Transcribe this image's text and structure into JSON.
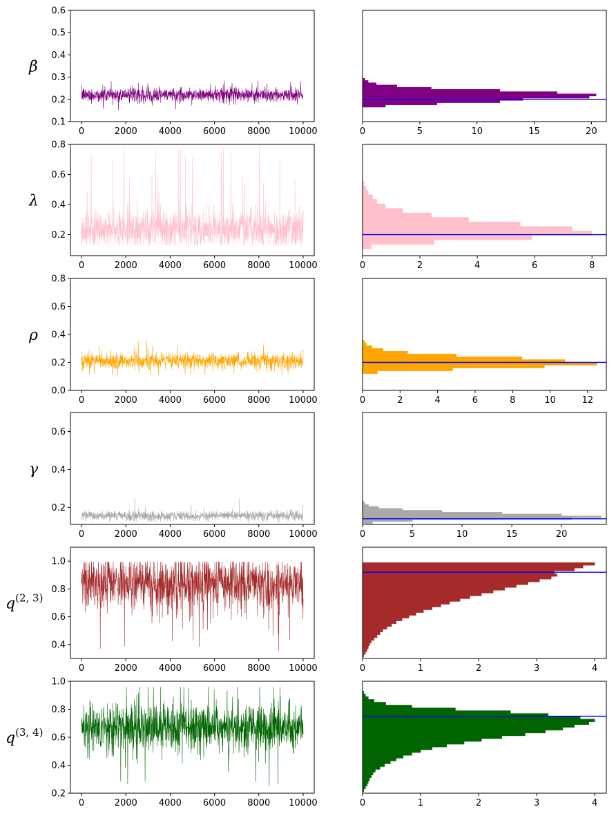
{
  "chart_data": [
    {
      "type": "line",
      "param": "β",
      "sup": "",
      "color": "#800080",
      "trace": {
        "xlim": [
          -500,
          10500
        ],
        "xticks": [
          0,
          2000,
          4000,
          6000,
          8000,
          10000
        ],
        "ylim": [
          0.1,
          0.6
        ],
        "yticks": [
          "0.1",
          "0.2",
          "0.3",
          "0.4",
          "0.5",
          "0.6"
        ],
        "center": 0.22,
        "spread": 0.018,
        "min": 0.15,
        "max": 0.29,
        "spikes": 0.02
      },
      "hist": {
        "type": "bar",
        "xlim": [
          0,
          21.3
        ],
        "xticks": [
          0,
          5,
          10,
          15,
          20
        ],
        "ylim": [
          0.1,
          0.6
        ],
        "bins": [
          0.17,
          0.18,
          0.19,
          0.2,
          0.21,
          0.22,
          0.23,
          0.24,
          0.25,
          0.26,
          0.27,
          0.28,
          0.29
        ],
        "values": [
          2.0,
          6.5,
          12.0,
          14.0,
          19.8,
          20.4,
          17.0,
          12.0,
          6.0,
          3.0,
          1.2,
          0.5,
          0.2
        ],
        "reference": 0.2
      }
    },
    {
      "type": "line",
      "param": "λ",
      "sup": "",
      "color": "#ffc0cb",
      "trace": {
        "xlim": [
          -500,
          10500
        ],
        "xticks": [
          0,
          2000,
          4000,
          6000,
          8000,
          10000
        ],
        "ylim": [
          0.06,
          0.8
        ],
        "yticks": [
          "0.2",
          "0.4",
          "0.6",
          "0.8"
        ],
        "center": 0.24,
        "spread": 0.07,
        "min": 0.13,
        "max": 0.8,
        "spikes": 0.05
      },
      "hist": {
        "type": "bar",
        "xlim": [
          0,
          8.5
        ],
        "xticks": [
          0,
          2,
          4,
          6,
          8
        ],
        "ylim": [
          0.06,
          0.8
        ],
        "bins": [
          0.12,
          0.15,
          0.18,
          0.21,
          0.24,
          0.27,
          0.3,
          0.33,
          0.36,
          0.39,
          0.42,
          0.45,
          0.48,
          0.51,
          0.54
        ],
        "values": [
          0.3,
          2.5,
          5.9,
          8.0,
          7.3,
          5.5,
          3.7,
          2.4,
          1.4,
          0.8,
          0.5,
          0.35,
          0.2,
          0.12,
          0.05
        ],
        "reference": 0.2
      }
    },
    {
      "type": "line",
      "param": "ρ",
      "sup": "",
      "color": "#ffa500",
      "trace": {
        "xlim": [
          -500,
          10500
        ],
        "xticks": [
          0,
          2000,
          4000,
          6000,
          8000,
          10000
        ],
        "ylim": [
          0.0,
          0.8
        ],
        "yticks": [
          "0.0",
          "0.2",
          "0.4",
          "0.6",
          "0.8"
        ],
        "center": 0.21,
        "spread": 0.032,
        "min": 0.11,
        "max": 0.37,
        "spikes": 0.02
      },
      "hist": {
        "type": "bar",
        "xlim": [
          0,
          13.0
        ],
        "xticks": [
          0,
          2,
          4,
          6,
          8,
          10,
          12
        ],
        "ylim": [
          0.0,
          0.8
        ],
        "bins": [
          0.13,
          0.15,
          0.17,
          0.19,
          0.21,
          0.23,
          0.25,
          0.27,
          0.29,
          0.31,
          0.33,
          0.35
        ],
        "values": [
          0.8,
          4.8,
          9.7,
          12.5,
          10.8,
          8.5,
          5.0,
          2.4,
          1.1,
          0.5,
          0.2,
          0.1
        ],
        "reference": 0.2
      }
    },
    {
      "type": "line",
      "param": "γ",
      "sup": "",
      "color": "#a9a9a9",
      "trace": {
        "xlim": [
          -500,
          10500
        ],
        "xticks": [
          0,
          2000,
          4000,
          6000,
          8000,
          10000
        ],
        "ylim": [
          0.11,
          0.7
        ],
        "yticks": [
          "0.2",
          "0.4",
          "0.6"
        ],
        "center": 0.155,
        "spread": 0.014,
        "min": 0.12,
        "max": 0.27,
        "spikes": 0.015
      },
      "hist": {
        "type": "bar",
        "xlim": [
          0,
          24.5
        ],
        "xticks": [
          0,
          5,
          10,
          15,
          20
        ],
        "ylim": [
          0.11,
          0.7
        ],
        "bins": [
          0.12,
          0.13,
          0.14,
          0.15,
          0.16,
          0.17,
          0.18,
          0.19,
          0.2,
          0.21,
          0.22,
          0.23
        ],
        "values": [
          1.0,
          5.0,
          21.0,
          24.0,
          20.0,
          14.0,
          8.0,
          4.0,
          1.6,
          0.6,
          0.25,
          0.1
        ],
        "reference": 0.14
      }
    },
    {
      "type": "line",
      "param": "q",
      "sup": "(2, 3)",
      "color": "#a52a2a",
      "trace": {
        "xlim": [
          -500,
          10500
        ],
        "xticks": [
          0,
          2000,
          4000,
          6000,
          8000,
          10000
        ],
        "ylim": [
          0.3,
          1.1
        ],
        "yticks": [
          "0.4",
          "0.6",
          "0.8",
          "1.0"
        ],
        "center": 0.84,
        "spread": 0.1,
        "min": 0.31,
        "max": 0.995,
        "spikes": 0.04
      },
      "hist": {
        "type": "bar",
        "xlim": [
          0,
          4.2
        ],
        "xticks": [
          0,
          1,
          2,
          3,
          4
        ],
        "ylim": [
          0.3,
          1.1
        ],
        "bins": [
          0.32,
          0.34,
          0.36,
          0.38,
          0.4,
          0.42,
          0.44,
          0.46,
          0.48,
          0.5,
          0.52,
          0.54,
          0.56,
          0.58,
          0.6,
          0.62,
          0.64,
          0.66,
          0.68,
          0.7,
          0.72,
          0.74,
          0.76,
          0.78,
          0.8,
          0.82,
          0.84,
          0.86,
          0.88,
          0.9,
          0.92,
          0.94,
          0.96,
          0.98
        ],
        "values": [
          0.02,
          0.05,
          0.08,
          0.1,
          0.12,
          0.15,
          0.2,
          0.25,
          0.3,
          0.35,
          0.42,
          0.5,
          0.58,
          0.68,
          0.8,
          0.92,
          1.05,
          1.2,
          1.35,
          1.5,
          1.68,
          1.85,
          2.05,
          2.25,
          2.45,
          2.65,
          2.85,
          3.05,
          3.25,
          3.35,
          3.3,
          3.65,
          3.8,
          4.0
        ],
        "reference": 0.92
      }
    },
    {
      "type": "line",
      "param": "q",
      "sup": "(3, 4)",
      "color": "#006400",
      "trace": {
        "xlim": [
          -500,
          10500
        ],
        "xticks": [
          0,
          2000,
          4000,
          6000,
          8000,
          10000
        ],
        "ylim": [
          0.2,
          1.0
        ],
        "yticks": [
          "0.2",
          "0.4",
          "0.6",
          "0.8",
          "1.0"
        ],
        "center": 0.67,
        "spread": 0.09,
        "min": 0.22,
        "max": 0.96,
        "spikes": 0.04
      },
      "hist": {
        "type": "bar",
        "xlim": [
          0,
          4.2
        ],
        "xticks": [
          0,
          1,
          2,
          3,
          4
        ],
        "ylim": [
          0.2,
          1.0
        ],
        "bins": [
          0.22,
          0.24,
          0.26,
          0.28,
          0.3,
          0.32,
          0.34,
          0.36,
          0.38,
          0.4,
          0.42,
          0.44,
          0.46,
          0.48,
          0.5,
          0.52,
          0.54,
          0.56,
          0.58,
          0.6,
          0.62,
          0.64,
          0.66,
          0.68,
          0.7,
          0.72,
          0.74,
          0.76,
          0.78,
          0.8,
          0.82,
          0.84,
          0.86,
          0.88,
          0.9,
          0.92
        ],
        "values": [
          0.02,
          0.05,
          0.08,
          0.1,
          0.12,
          0.15,
          0.18,
          0.22,
          0.3,
          0.38,
          0.48,
          0.58,
          0.7,
          0.85,
          1.0,
          1.2,
          1.45,
          1.75,
          2.05,
          2.4,
          2.8,
          3.15,
          3.45,
          3.65,
          3.9,
          4.0,
          3.75,
          3.2,
          2.55,
          1.6,
          0.85,
          0.4,
          0.2,
          0.1,
          0.05,
          0.02
        ],
        "reference": 0.75
      }
    }
  ]
}
